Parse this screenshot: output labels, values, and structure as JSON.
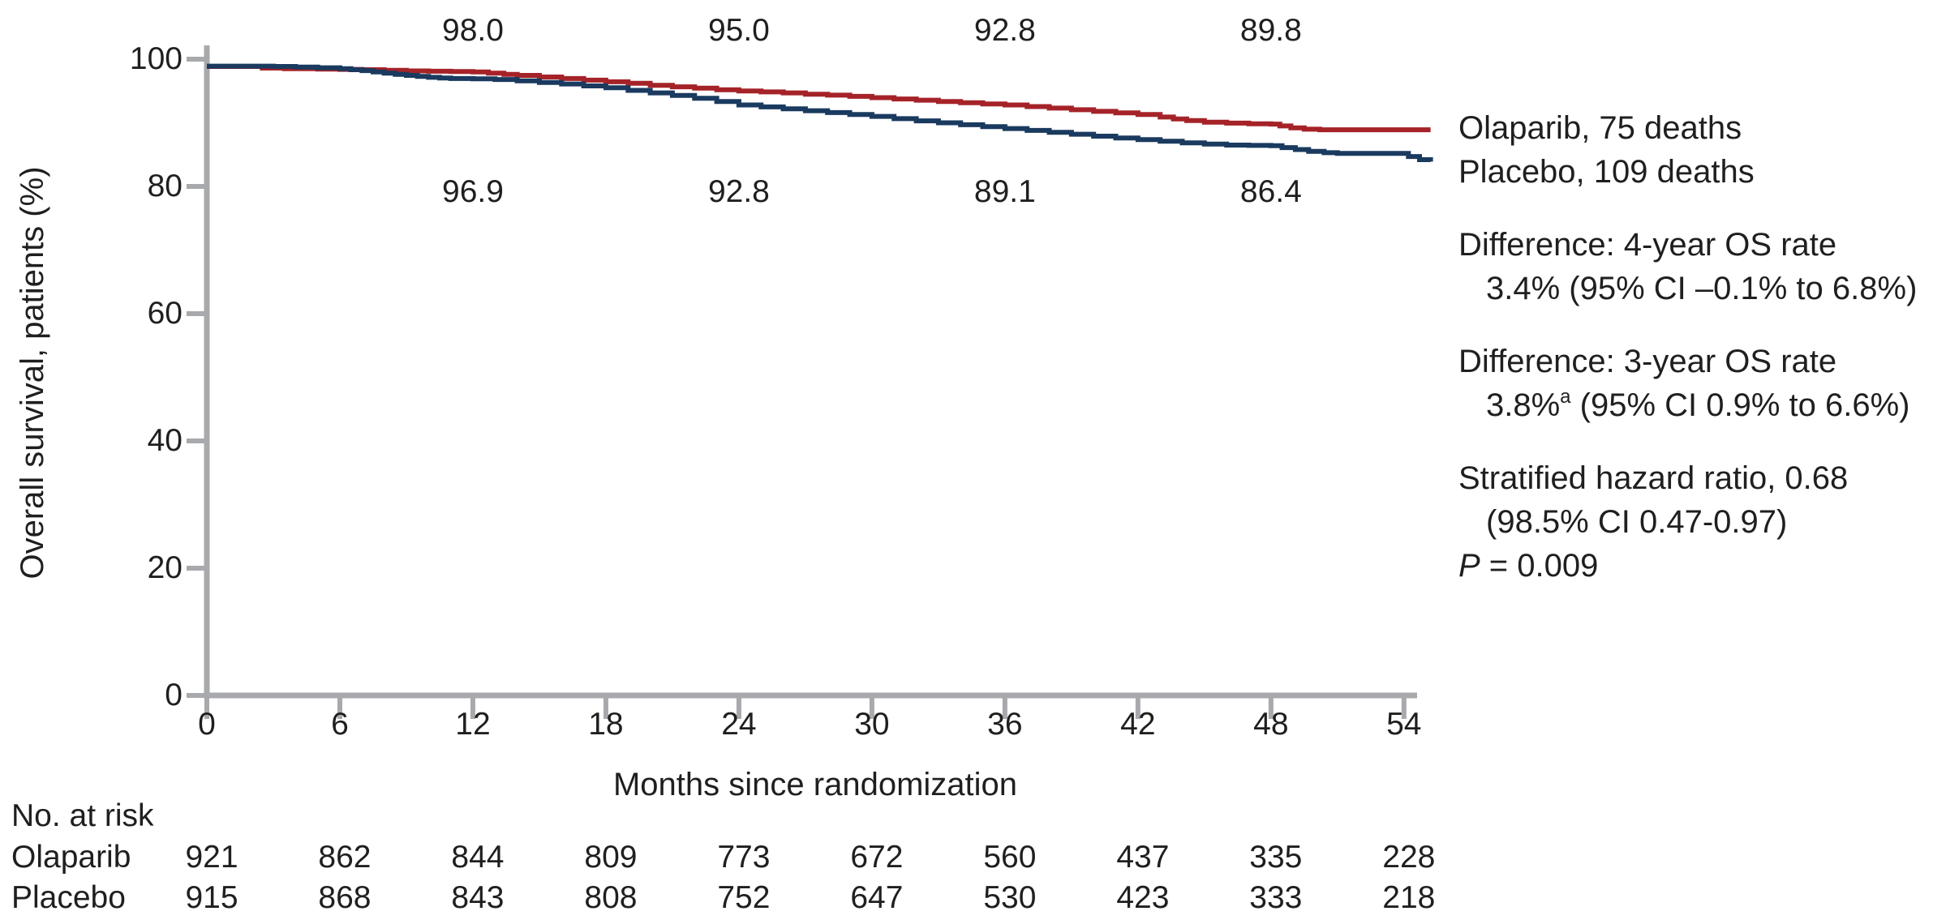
{
  "figure": {
    "background": "#ffffff",
    "text_color": "#1f1f1f",
    "axis_color": "#A7A9AC"
  },
  "chart_data": {
    "type": "line",
    "subtype": "kaplan-meier-step",
    "title": "",
    "xlabel": "Months since randomization",
    "ylabel": "Overall survival, patients (%)",
    "xlim": [
      0,
      57.5
    ],
    "ylim": [
      0,
      100
    ],
    "grid": false,
    "x_ticks": [
      0,
      6,
      12,
      18,
      24,
      30,
      36,
      42,
      48,
      54
    ],
    "y_ticks": [
      0,
      20,
      40,
      60,
      80,
      100
    ],
    "legend_position": "labels right of curve ends",
    "series": [
      {
        "name": "Olaparib",
        "color": "#A52328",
        "end_label": "Olaparib, 75 deaths",
        "landmarks": {
          "months": [
            12,
            24,
            36,
            48
          ],
          "labels": [
            "98.0",
            "95.0",
            "92.8",
            "89.8"
          ]
        },
        "points": [
          [
            0,
            98.85
          ],
          [
            1.5,
            98.85
          ],
          [
            2.5,
            98.6
          ],
          [
            3.5,
            98.5
          ],
          [
            5,
            98.45
          ],
          [
            6,
            98.4
          ],
          [
            7,
            98.35
          ],
          [
            8,
            98.25
          ],
          [
            9,
            98.15
          ],
          [
            10,
            98.1
          ],
          [
            11,
            98.05
          ],
          [
            12,
            98.0
          ],
          [
            12.7,
            97.8
          ],
          [
            13.4,
            97.6
          ],
          [
            14,
            97.45
          ],
          [
            15,
            97.2
          ],
          [
            16,
            96.95
          ],
          [
            17,
            96.7
          ],
          [
            18,
            96.45
          ],
          [
            19,
            96.2
          ],
          [
            20,
            95.9
          ],
          [
            21,
            95.65
          ],
          [
            22,
            95.45
          ],
          [
            23,
            95.2
          ],
          [
            24,
            95.0
          ],
          [
            25,
            94.85
          ],
          [
            26,
            94.7
          ],
          [
            27,
            94.5
          ],
          [
            28,
            94.35
          ],
          [
            29,
            94.15
          ],
          [
            30,
            93.95
          ],
          [
            31,
            93.75
          ],
          [
            32,
            93.55
          ],
          [
            33,
            93.35
          ],
          [
            34,
            93.15
          ],
          [
            35,
            92.95
          ],
          [
            36,
            92.8
          ],
          [
            37,
            92.55
          ],
          [
            38,
            92.3
          ],
          [
            39,
            92.05
          ],
          [
            40,
            91.8
          ],
          [
            41,
            91.55
          ],
          [
            42,
            91.3
          ],
          [
            43,
            90.9
          ],
          [
            43.6,
            90.6
          ],
          [
            44.2,
            90.35
          ],
          [
            45,
            90.1
          ],
          [
            46,
            89.95
          ],
          [
            47,
            89.85
          ],
          [
            48,
            89.8
          ],
          [
            48.4,
            89.5
          ],
          [
            48.9,
            89.2
          ],
          [
            49.5,
            89.0
          ],
          [
            50.2,
            88.9
          ],
          [
            55.2,
            88.9
          ]
        ]
      },
      {
        "name": "Placebo",
        "color": "#1A3A5F",
        "end_label": "Placebo, 109 deaths",
        "landmarks": {
          "months": [
            12,
            24,
            36,
            48
          ],
          "labels": [
            "96.9",
            "92.8",
            "89.1",
            "86.4"
          ]
        },
        "points": [
          [
            0,
            98.9
          ],
          [
            2,
            98.9
          ],
          [
            3,
            98.85
          ],
          [
            4,
            98.75
          ],
          [
            5,
            98.65
          ],
          [
            6,
            98.5
          ],
          [
            6.5,
            98.35
          ],
          [
            7,
            98.2
          ],
          [
            7.5,
            98.0
          ],
          [
            8,
            97.8
          ],
          [
            8.5,
            97.6
          ],
          [
            9,
            97.45
          ],
          [
            9.5,
            97.3
          ],
          [
            10,
            97.15
          ],
          [
            10.5,
            97.05
          ],
          [
            11,
            96.95
          ],
          [
            12,
            96.9
          ],
          [
            13,
            96.8
          ],
          [
            14,
            96.6
          ],
          [
            15,
            96.35
          ],
          [
            16,
            96.1
          ],
          [
            17,
            95.8
          ],
          [
            18,
            95.5
          ],
          [
            19,
            95.1
          ],
          [
            20,
            94.7
          ],
          [
            21,
            94.3
          ],
          [
            22,
            93.85
          ],
          [
            23,
            93.35
          ],
          [
            24,
            92.8
          ],
          [
            25,
            92.5
          ],
          [
            26,
            92.2
          ],
          [
            27,
            91.9
          ],
          [
            28,
            91.6
          ],
          [
            29,
            91.3
          ],
          [
            30,
            91.0
          ],
          [
            31,
            90.65
          ],
          [
            32,
            90.3
          ],
          [
            33,
            90.0
          ],
          [
            34,
            89.7
          ],
          [
            35,
            89.4
          ],
          [
            36,
            89.1
          ],
          [
            37,
            88.8
          ],
          [
            38,
            88.5
          ],
          [
            39,
            88.2
          ],
          [
            40,
            87.9
          ],
          [
            41,
            87.6
          ],
          [
            42,
            87.35
          ],
          [
            43,
            87.1
          ],
          [
            44,
            86.85
          ],
          [
            45,
            86.65
          ],
          [
            46,
            86.5
          ],
          [
            47,
            86.45
          ],
          [
            48,
            86.4
          ],
          [
            48.5,
            86.1
          ],
          [
            49.1,
            85.8
          ],
          [
            49.7,
            85.5
          ],
          [
            50.4,
            85.3
          ],
          [
            51,
            85.2
          ],
          [
            53.8,
            85.2
          ],
          [
            54.2,
            84.7
          ],
          [
            54.7,
            84.2
          ],
          [
            55.2,
            83.9
          ]
        ]
      }
    ]
  },
  "stats_panel": {
    "olaparib_deaths": "Olaparib, 75 deaths",
    "placebo_deaths": "Placebo, 109 deaths",
    "diff4_title": "Difference: 4-year OS rate",
    "diff4_value": "3.4% (95% CI –0.1% to 6.8%)",
    "diff3_title": "Difference: 3-year OS rate",
    "diff3_value_pre": "3.8%",
    "diff3_value_sup": "a",
    "diff3_value_post": " (95% CI 0.9% to 6.6%)",
    "hr_title": "Stratified hazard ratio, 0.68",
    "hr_ci": "(98.5% CI 0.47-0.97)",
    "p_label": "P",
    "p_rest": " = 0.009"
  },
  "at_risk": {
    "title": "No. at risk",
    "months": [
      0,
      6,
      12,
      18,
      24,
      30,
      36,
      42,
      48,
      54
    ],
    "rows": [
      {
        "label": "Olaparib",
        "counts": [
          "921",
          "862",
          "844",
          "809",
          "773",
          "672",
          "560",
          "437",
          "335",
          "228"
        ]
      },
      {
        "label": "Placebo",
        "counts": [
          "915",
          "868",
          "843",
          "808",
          "752",
          "647",
          "530",
          "423",
          "333",
          "218"
        ]
      }
    ]
  }
}
